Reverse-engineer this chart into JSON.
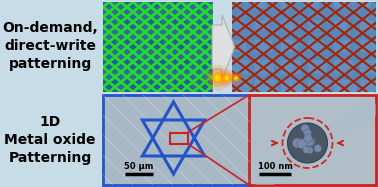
{
  "background_color": "#c8dce8",
  "title_text_top": "On-demand,\ndirect-write\npatterning",
  "title_text_bottom": "1D\nMetal oxide\nPatterning",
  "text_color": "#000000",
  "text_fontsize": 10,
  "text_fontweight": "bold",
  "scale_bar_50": "50 μm",
  "scale_bar_100": "100 nm",
  "green_grid_color": "#22dd22",
  "red_grid_color": "#aa2200",
  "tl_bg_color": "#3366aa",
  "tr_bg_color": "#5588bb",
  "bl_bg_color": "#a8b8c4",
  "br_bg_color": "#b0bec8",
  "bl_border_color": "#2255cc",
  "br_border_color": "#cc2222",
  "star_color": "#2255cc",
  "dashed_circle_color": "#dd2222",
  "nano_particle_color": "#445566",
  "arrow_indicator_color": "#cc2222",
  "flame_colors": [
    "#ff4400",
    "#ff7700",
    "#ffaa00",
    "#ffcc00"
  ],
  "arrow_bg_color": "#dddddd",
  "block_color_tl": "#2255aa",
  "block_color_tr": "#6699cc",
  "zoom_line_color": "#cc2222"
}
